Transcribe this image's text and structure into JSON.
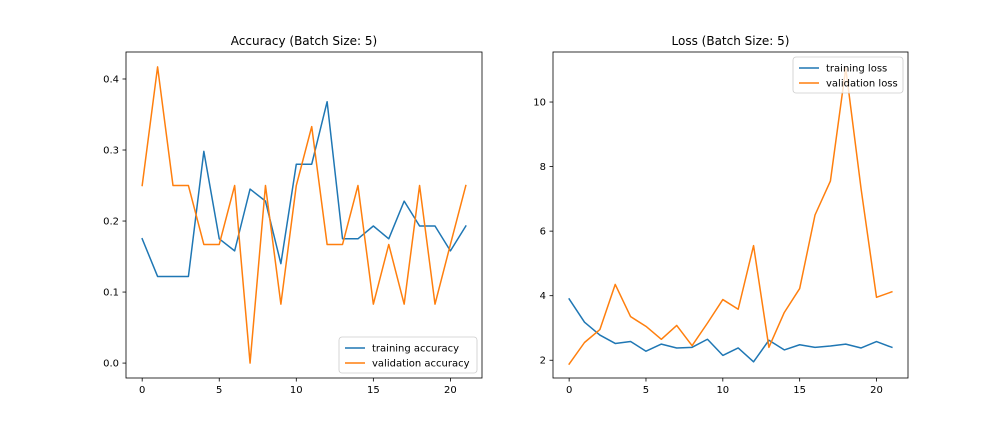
{
  "chart_data": [
    {
      "type": "line",
      "title": "Accuracy (Batch Size: 5)",
      "xlabel": "",
      "ylabel": "",
      "xlim": [
        -1.05,
        22.05
      ],
      "ylim": [
        -0.021,
        0.438
      ],
      "xticks": [
        0,
        5,
        10,
        15,
        20
      ],
      "yticks": [
        0.0,
        0.1,
        0.2,
        0.3,
        0.4
      ],
      "ytick_labels": [
        "0.0",
        "0.1",
        "0.2",
        "0.3",
        "0.4"
      ],
      "grid": false,
      "legend_position": "lower-right",
      "x": [
        0,
        1,
        2,
        3,
        4,
        5,
        6,
        7,
        8,
        9,
        10,
        11,
        12,
        13,
        14,
        15,
        16,
        17,
        18,
        19,
        20,
        21
      ],
      "series": [
        {
          "name": "training accuracy",
          "color": "#1f77b4",
          "values": [
            0.175,
            0.122,
            0.122,
            0.122,
            0.298,
            0.175,
            0.158,
            0.245,
            0.228,
            0.14,
            0.28,
            0.28,
            0.368,
            0.175,
            0.175,
            0.193,
            0.175,
            0.228,
            0.193,
            0.193,
            0.158,
            0.193
          ]
        },
        {
          "name": "validation accuracy",
          "color": "#ff7f0e",
          "values": [
            0.25,
            0.417,
            0.25,
            0.25,
            0.167,
            0.167,
            0.25,
            0.0,
            0.25,
            0.083,
            0.25,
            0.333,
            0.167,
            0.167,
            0.25,
            0.083,
            0.167,
            0.083,
            0.25,
            0.083,
            0.167,
            0.25
          ]
        }
      ]
    },
    {
      "type": "line",
      "title": "Loss (Batch Size: 5)",
      "xlabel": "",
      "ylabel": "",
      "xlim": [
        -1.05,
        22.05
      ],
      "ylim": [
        1.45,
        11.55
      ],
      "xticks": [
        0,
        5,
        10,
        15,
        20
      ],
      "yticks": [
        2,
        4,
        6,
        8,
        10
      ],
      "ytick_labels": [
        "2",
        "4",
        "6",
        "8",
        "10"
      ],
      "grid": false,
      "legend_position": "top-right",
      "x": [
        0,
        1,
        2,
        3,
        4,
        5,
        6,
        7,
        8,
        9,
        10,
        11,
        12,
        13,
        14,
        15,
        16,
        17,
        18,
        19,
        20,
        21
      ],
      "series": [
        {
          "name": "training loss",
          "color": "#1f77b4",
          "values": [
            3.9,
            3.18,
            2.78,
            2.52,
            2.58,
            2.28,
            2.5,
            2.38,
            2.4,
            2.65,
            2.15,
            2.38,
            1.95,
            2.62,
            2.32,
            2.48,
            2.4,
            2.44,
            2.5,
            2.38,
            2.58,
            2.4
          ]
        },
        {
          "name": "validation loss",
          "color": "#ff7f0e",
          "values": [
            1.88,
            2.55,
            2.95,
            4.35,
            3.35,
            3.05,
            2.65,
            3.08,
            2.45,
            3.15,
            3.88,
            3.58,
            5.55,
            2.4,
            3.48,
            4.22,
            6.5,
            7.55,
            11.05,
            7.3,
            3.95,
            4.12
          ]
        }
      ]
    }
  ]
}
